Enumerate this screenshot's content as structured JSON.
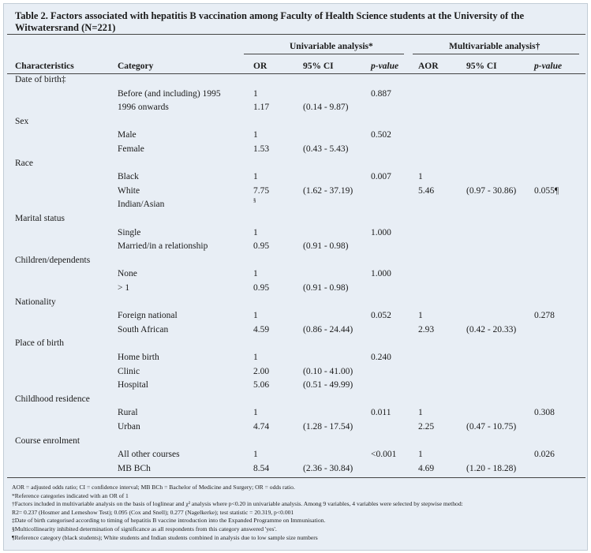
{
  "title": "Table 2. Factors associated with hepatitis B vaccination among Faculty of Health Science students at the University of the Witwatersrand (N=221)",
  "group_headers": [
    "Univariable analysis*",
    "Multivariable analysis†"
  ],
  "column_headers": [
    "Characteristics",
    "Category",
    "OR",
    "95% CI",
    "p-value",
    "AOR",
    "95% CI",
    "p-value"
  ],
  "groups": [
    {
      "label": "Date of birth‡",
      "rows": [
        [
          "Before (and including) 1995",
          "1",
          null,
          "0.887",
          null,
          null,
          null
        ],
        [
          "1996 onwards",
          "1.17",
          "(0.14 - 9.87)",
          null,
          null,
          null,
          null
        ]
      ]
    },
    {
      "label": "Sex",
      "rows": [
        [
          "Male",
          "1",
          null,
          "0.502",
          null,
          null,
          null
        ],
        [
          "Female",
          "1.53",
          "(0.43 - 5.43)",
          null,
          null,
          null,
          null
        ]
      ]
    },
    {
      "label": "Race",
      "rows": [
        [
          "Black",
          "1",
          null,
          "0.007",
          "1",
          null,
          null
        ],
        [
          "White",
          "7.75",
          "(1.62 - 37.19)",
          null,
          "5.46",
          "(0.97 - 30.86)",
          "0.055¶"
        ],
        [
          "Indian/Asian",
          "§",
          null,
          null,
          null,
          null,
          null
        ]
      ]
    },
    {
      "label": "Marital status",
      "rows": [
        [
          "Single",
          "1",
          null,
          "1.000",
          null,
          null,
          null
        ],
        [
          "Married/in a relationship",
          "0.95",
          "(0.91 - 0.98)",
          null,
          null,
          null,
          null
        ]
      ]
    },
    {
      "label": "Children/dependents",
      "rows": [
        [
          "None",
          "1",
          null,
          "1.000",
          null,
          null,
          null
        ],
        [
          "> 1",
          "0.95",
          "(0.91 - 0.98)",
          null,
          null,
          null,
          null
        ]
      ]
    },
    {
      "label": "Nationality",
      "rows": [
        [
          "Foreign national",
          "1",
          null,
          "0.052",
          "1",
          null,
          "0.278"
        ],
        [
          "South African",
          "4.59",
          "(0.86 - 24.44)",
          null,
          "2.93",
          "(0.42 - 20.33)",
          null
        ]
      ]
    },
    {
      "label": "Place of birth",
      "rows": [
        [
          "Home birth",
          "1",
          null,
          "0.240",
          null,
          null,
          null
        ],
        [
          "Clinic",
          "2.00",
          "(0.10 - 41.00)",
          null,
          null,
          null,
          null
        ],
        [
          "Hospital",
          "5.06",
          "(0.51 - 49.99)",
          null,
          null,
          null,
          null
        ]
      ]
    },
    {
      "label": "Childhood residence",
      "rows": [
        [
          "Rural",
          "1",
          null,
          "0.011",
          "1",
          null,
          "0.308"
        ],
        [
          "Urban",
          "4.74",
          "(1.28 - 17.54)",
          null,
          "2.25",
          "(0.47 - 10.75)",
          null
        ]
      ]
    },
    {
      "label": "Course enrolment",
      "rows": [
        [
          "All other courses",
          "1",
          null,
          "<0.001",
          "1",
          null,
          "0.026"
        ],
        [
          "MB BCh",
          "8.54",
          "(2.36 - 30.84)",
          null,
          "4.69",
          "(1.20 - 18.28)",
          null
        ]
      ]
    }
  ],
  "footnotes": [
    "AOR = adjusted odds ratio; CI = confidence interval; MB BCh = Bachelor of Medicine and Surgery; OR = odds ratio.",
    "*Reference categories indicated with an OR of 1",
    "†Factors included in multivariable analysis on the basis of loglinear and χ² analysis where p<0.20 in univariable analysis. Among 9 variables, 4 variables were selected by stepwise method:",
    "R2= 0.237 (Hosmer and Lemeshow Test); 0.095 (Cox and Snell); 0.277 (Nagelkerke); test statistic = 20.319, p<0.001",
    "‡Date of birth categorised according to timing of hepatitis B vaccine introduction into the Expanded Programme on Immunisation.",
    "§Multicollinearity inhibited determination of significance as all respondents from this category answered 'yes'.",
    "¶Reference category (black students); White students and Indian students combined in analysis due to low sample size numbers"
  ]
}
